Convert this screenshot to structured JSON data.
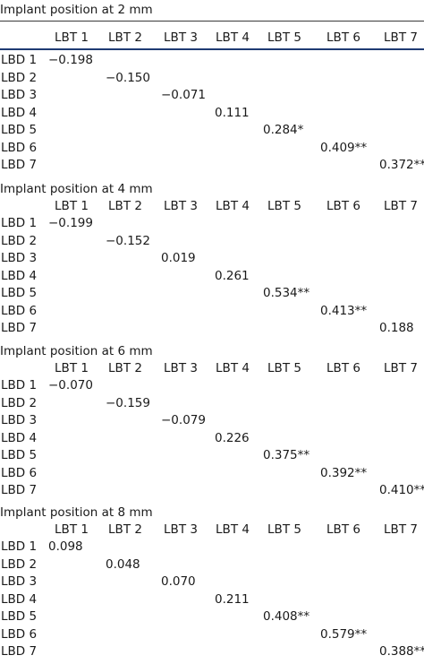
{
  "columns": [
    "LBT 1",
    "LBT 2",
    "LBT 3",
    "LBT 4",
    "LBT 5",
    "LBT 6",
    "LBT 7"
  ],
  "sections": [
    {
      "title": "Implant position at 2 mm",
      "rows": [
        {
          "label": "LBD 1",
          "value": "−0.198"
        },
        {
          "label": "LBD 2",
          "value": "−0.150"
        },
        {
          "label": "LBD 3",
          "value": "−0.071"
        },
        {
          "label": "LBD 4",
          "value": "0.111"
        },
        {
          "label": "LBD 5",
          "value": "0.284*"
        },
        {
          "label": "LBD 6",
          "value": "0.409**"
        },
        {
          "label": "LBD 7",
          "value": "0.372**"
        }
      ]
    },
    {
      "title": "Implant position at 4 mm",
      "rows": [
        {
          "label": "LBD 1",
          "value": "−0.199"
        },
        {
          "label": "LBD 2",
          "value": "−0.152"
        },
        {
          "label": "LBD 3",
          "value": "0.019"
        },
        {
          "label": "LBD 4",
          "value": "0.261"
        },
        {
          "label": "LBD 5",
          "value": "0.534**"
        },
        {
          "label": "LBD 6",
          "value": "0.413**"
        },
        {
          "label": "LBD 7",
          "value": "0.188"
        }
      ]
    },
    {
      "title": "Implant position at 6 mm",
      "rows": [
        {
          "label": "LBD 1",
          "value": "−0.070"
        },
        {
          "label": "LBD 2",
          "value": "−0.159"
        },
        {
          "label": "LBD 3",
          "value": "−0.079"
        },
        {
          "label": "LBD 4",
          "value": "0.226"
        },
        {
          "label": "LBD 5",
          "value": "0.375**"
        },
        {
          "label": "LBD 6",
          "value": "0.392**"
        },
        {
          "label": "LBD 7",
          "value": "0.410**"
        }
      ]
    },
    {
      "title": "Implant position at 8 mm",
      "rows": [
        {
          "label": "LBD 1",
          "value": "0.098"
        },
        {
          "label": "LBD 2",
          "value": "0.048"
        },
        {
          "label": "LBD 3",
          "value": "0.070"
        },
        {
          "label": "LBD 4",
          "value": "0.211"
        },
        {
          "label": "LBD 5",
          "value": "0.408**"
        },
        {
          "label": "LBD 6",
          "value": "0.579**"
        },
        {
          "label": "LBD 7",
          "value": "0.388**"
        }
      ]
    }
  ]
}
